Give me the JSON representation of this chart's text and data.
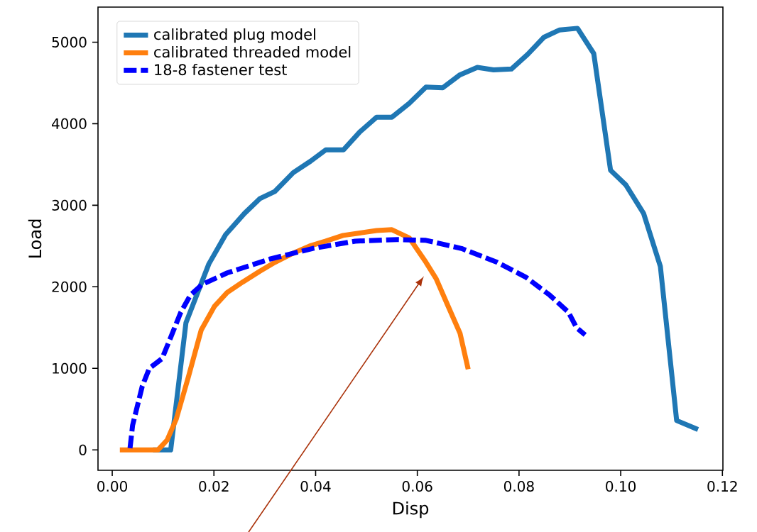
{
  "chart_data": {
    "type": "line",
    "xlabel": "Disp",
    "ylabel": "Load",
    "xlim": [
      -0.0028,
      0.1201
    ],
    "ylim": [
      -250,
      5430
    ],
    "xticks": [
      {
        "value": 0,
        "label": "0.00"
      },
      {
        "value": 0.02,
        "label": "0.02"
      },
      {
        "value": 0.04,
        "label": "0.04"
      },
      {
        "value": 0.06,
        "label": "0.06"
      },
      {
        "value": 0.08,
        "label": "0.08"
      },
      {
        "value": 0.1,
        "label": "0.10"
      },
      {
        "value": 0.12,
        "label": "0.12"
      }
    ],
    "yticks": [
      0,
      1000,
      2000,
      3000,
      4000,
      5000
    ],
    "grid": false,
    "legend": "top left",
    "series": [
      {
        "name": "calibrated plug model",
        "color": "#1f77b4",
        "line_style": "solid",
        "x": [
          0.008,
          0.0115,
          0.0145,
          0.019,
          0.0223,
          0.026,
          0.029,
          0.032,
          0.0356,
          0.039,
          0.042,
          0.0455,
          0.0487,
          0.052,
          0.055,
          0.0584,
          0.0617,
          0.065,
          0.0684,
          0.0718,
          0.075,
          0.0785,
          0.0817,
          0.0849,
          0.088,
          0.0915,
          0.0947,
          0.098,
          0.101,
          0.1045,
          0.1078,
          0.111,
          0.1152
        ],
        "values": [
          0,
          0,
          1560,
          2280,
          2640,
          2900,
          3080,
          3170,
          3400,
          3540,
          3680,
          3680,
          3900,
          4080,
          4080,
          4250,
          4450,
          4440,
          4600,
          4690,
          4660,
          4670,
          4850,
          5060,
          5150,
          5170,
          4860,
          3430,
          3250,
          2900,
          2250,
          360,
          250
        ]
      },
      {
        "name": "calibrated threaded model",
        "color": "#ff7f0e",
        "line_style": "solid",
        "x": [
          0.0015,
          0.009,
          0.0108,
          0.0126,
          0.015,
          0.0175,
          0.0201,
          0.0226,
          0.0257,
          0.029,
          0.032,
          0.0355,
          0.0388,
          0.042,
          0.0454,
          0.0487,
          0.052,
          0.055,
          0.0584,
          0.0617,
          0.0637,
          0.066,
          0.0684,
          0.07
        ],
        "values": [
          0,
          0,
          120,
          380,
          900,
          1470,
          1760,
          1930,
          2060,
          2190,
          2300,
          2410,
          2500,
          2560,
          2630,
          2660,
          2690,
          2700,
          2600,
          2300,
          2100,
          1770,
          1430,
          990
        ]
      },
      {
        "name": "18-8 fastener test",
        "color": "#0000ff",
        "line_style": "dashed",
        "x": [
          0.0035,
          0.004,
          0.0059,
          0.0073,
          0.0098,
          0.0115,
          0.0135,
          0.0154,
          0.0177,
          0.0226,
          0.031,
          0.0394,
          0.0478,
          0.056,
          0.0617,
          0.0687,
          0.0757,
          0.0813,
          0.086,
          0.0897,
          0.0913,
          0.093
        ],
        "values": [
          20,
          300,
          780,
          1000,
          1120,
          1380,
          1690,
          1900,
          2030,
          2170,
          2340,
          2470,
          2560,
          2580,
          2570,
          2470,
          2300,
          2120,
          1900,
          1690,
          1500,
          1410
        ]
      }
    ]
  }
}
